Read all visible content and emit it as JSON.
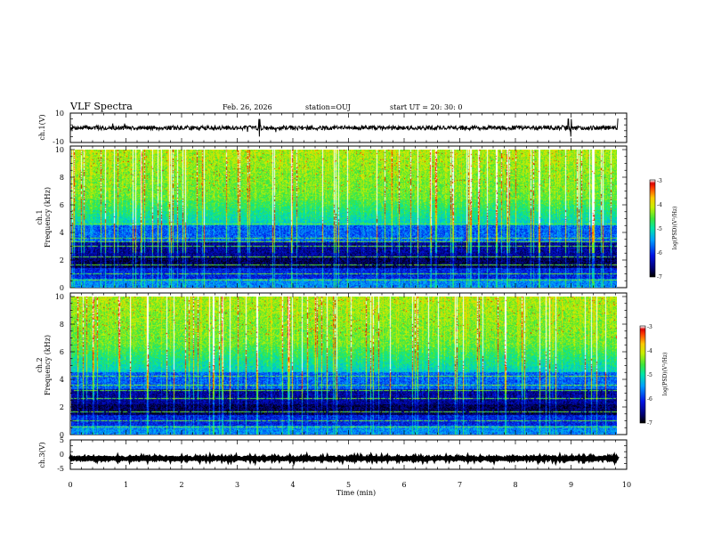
{
  "header": {
    "title": "VLF Spectra",
    "date": "Feb. 26, 2026",
    "station": "station=OUJ",
    "start": "start  UT =   20: 30: 0"
  },
  "chart_data": [
    {
      "type": "line",
      "name": "ch1-waveform",
      "ylabel": "ch.1(V)",
      "ylim": [
        -10,
        10
      ],
      "yticks": [
        "10",
        "-10"
      ],
      "baseline": 0,
      "amplitude": 1.5,
      "spikes_at_min": [
        3.4,
        8.95,
        9.0,
        9.85
      ],
      "xlim": [
        0,
        10
      ]
    },
    {
      "type": "heatmap",
      "name": "ch1-spectrogram",
      "ylabel": [
        "ch.1",
        "Frequency (kHz)"
      ],
      "ylim": [
        0,
        10
      ],
      "yticks": [
        "0",
        "2",
        "4",
        "6",
        "8",
        "10"
      ],
      "xlim": [
        0,
        9.85
      ],
      "colorbar": {
        "label": "log(PSD)(V²/Hz)",
        "range": [
          -7,
          -3
        ],
        "ticks": [
          "-3",
          "-4",
          "-5",
          "-6",
          "-7"
        ]
      },
      "narrowband_lines_khz": [
        0.5,
        1.0,
        1.6,
        2.2,
        3.0,
        3.3,
        3.6,
        4.6,
        6.4,
        7.2
      ],
      "seed": 11
    },
    {
      "type": "heatmap",
      "name": "ch2-spectrogram",
      "ylabel": [
        "ch.2",
        "Frequency (kHz)"
      ],
      "ylim": [
        0,
        10
      ],
      "yticks": [
        "0",
        "2",
        "4",
        "6",
        "8",
        "10"
      ],
      "xlim": [
        0,
        9.85
      ],
      "colorbar": {
        "label": "log(PSD)(V²/Hz)",
        "range": [
          -7,
          -3
        ],
        "ticks": [
          "-3",
          "-4",
          "-5",
          "-6",
          "-7"
        ]
      },
      "narrowband_lines_khz": [
        0.5,
        1.0,
        1.6,
        2.6,
        3.2,
        3.6,
        4.2,
        7.2
      ],
      "seed": 29
    },
    {
      "type": "line",
      "name": "ch3-waveform",
      "ylabel": "ch.3(V)",
      "ylim": [
        -5,
        5
      ],
      "yticks": [
        "5",
        "0",
        "-5"
      ],
      "baseline": -1.3,
      "amplitude": 0.3,
      "xlim": [
        0,
        10
      ]
    }
  ],
  "xaxis": {
    "label": "Time (min)",
    "ticks": [
      "0",
      "1",
      "2",
      "3",
      "4",
      "5",
      "6",
      "7",
      "8",
      "9",
      "10"
    ],
    "range": [
      0,
      10
    ]
  }
}
